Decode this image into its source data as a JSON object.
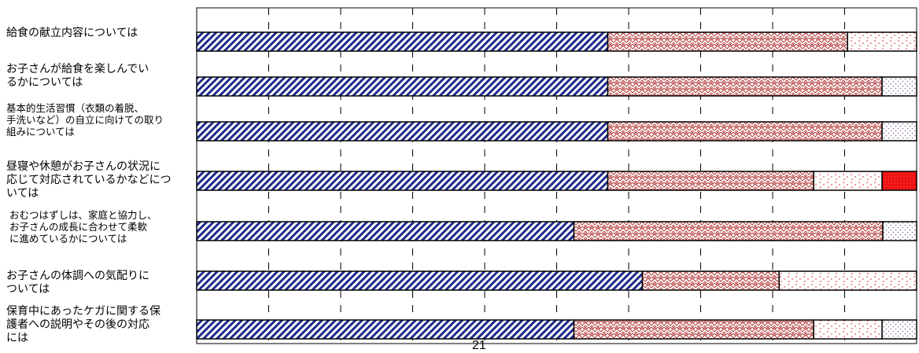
{
  "chart_data": {
    "type": "bar",
    "orientation": "horizontal",
    "stacked": true,
    "xlim": [
      0,
      100
    ],
    "x_unit": "percent",
    "grid": true,
    "categories": [
      "給食の献立内容については",
      "お子さんが給食を楽しんでいるかについては",
      "基本的生活習慣（衣類の着脱、手洗いなど）の自立に向けての取り組みについては",
      "昼寝や休憩がお子さんの状況に応じて対応されているかなどについては",
      "おむつはずしは、家庭と協力し、お子さんの成長に合わせて柔軟に進めているかについては",
      "お子さんの体調への気配りについては",
      "保育中にあったケガに関する保護者への説明やその後の対応には"
    ],
    "category_lines": [
      [
        "給食の献立内容については"
      ],
      [
        "お子さんが給食を楽しんでい",
        "るかについては"
      ],
      [
        "基本的生活習慣（衣類の着脱、",
        "手洗いなど）の自立に向けての取り",
        "組みについては"
      ],
      [
        "昼寝や休憩がお子さんの状況に",
        "応じて対応されているかなどにつ",
        "いては"
      ],
      [
        "おむつはずしは、家庭と協力し、",
        "お子さんの成長に合わせて柔軟",
        "に進めているかについては"
      ],
      [
        "お子さんの体調への気配りに",
        "ついては"
      ],
      [
        "保育中にあったケガに関する保",
        "護者への説明やその後の対応",
        "には"
      ]
    ],
    "series": [
      {
        "pattern": "navy-diagonal",
        "color": "#1f2a8a",
        "values": [
          57.1,
          57.1,
          57.1,
          57.1,
          52.4,
          61.9,
          52.4
        ]
      },
      {
        "pattern": "red-weave",
        "color": "#b43a3a",
        "values": [
          33.3,
          38.1,
          38.1,
          28.6,
          42.9,
          19.0,
          33.3
        ]
      },
      {
        "pattern": "red-dots",
        "color": "#e05050",
        "values": [
          9.6,
          0,
          0,
          9.5,
          0,
          19.1,
          9.5
        ]
      },
      {
        "pattern": "solid-red",
        "color": "#ee1111",
        "values": [
          0,
          0,
          0,
          4.8,
          0,
          0,
          0
        ]
      },
      {
        "pattern": "mauve-dots",
        "color": "#8a6d9e",
        "values": [
          0,
          4.8,
          4.8,
          0,
          4.7,
          0,
          4.8
        ]
      }
    ]
  },
  "page_number": "21"
}
